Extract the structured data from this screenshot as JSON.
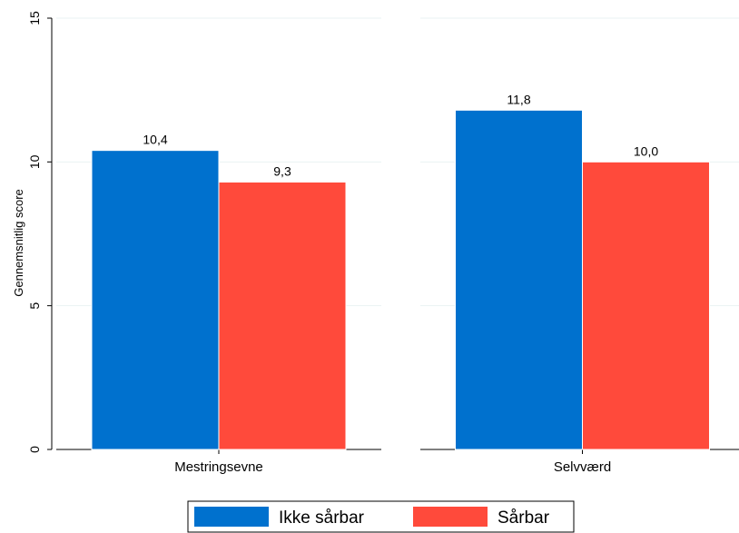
{
  "chart_data": {
    "type": "bar",
    "ylabel": "Gennemsnitlig score",
    "ylim": [
      0,
      15
    ],
    "yticks": [
      0,
      5,
      10,
      15
    ],
    "grid": true,
    "legend_position": "bottom",
    "panels": [
      {
        "category": "Mestringsevne",
        "values": [
          10.4,
          9.3
        ],
        "labels": [
          "10,4",
          "9,3"
        ]
      },
      {
        "category": "Selvværd",
        "values": [
          11.8,
          10.0
        ],
        "labels": [
          "11,8",
          "10,0"
        ]
      }
    ],
    "series": [
      {
        "name": "Ikke sårbar",
        "color": "#0071ce"
      },
      {
        "name": "Sårbar",
        "color": "#ff4a3b"
      }
    ]
  }
}
